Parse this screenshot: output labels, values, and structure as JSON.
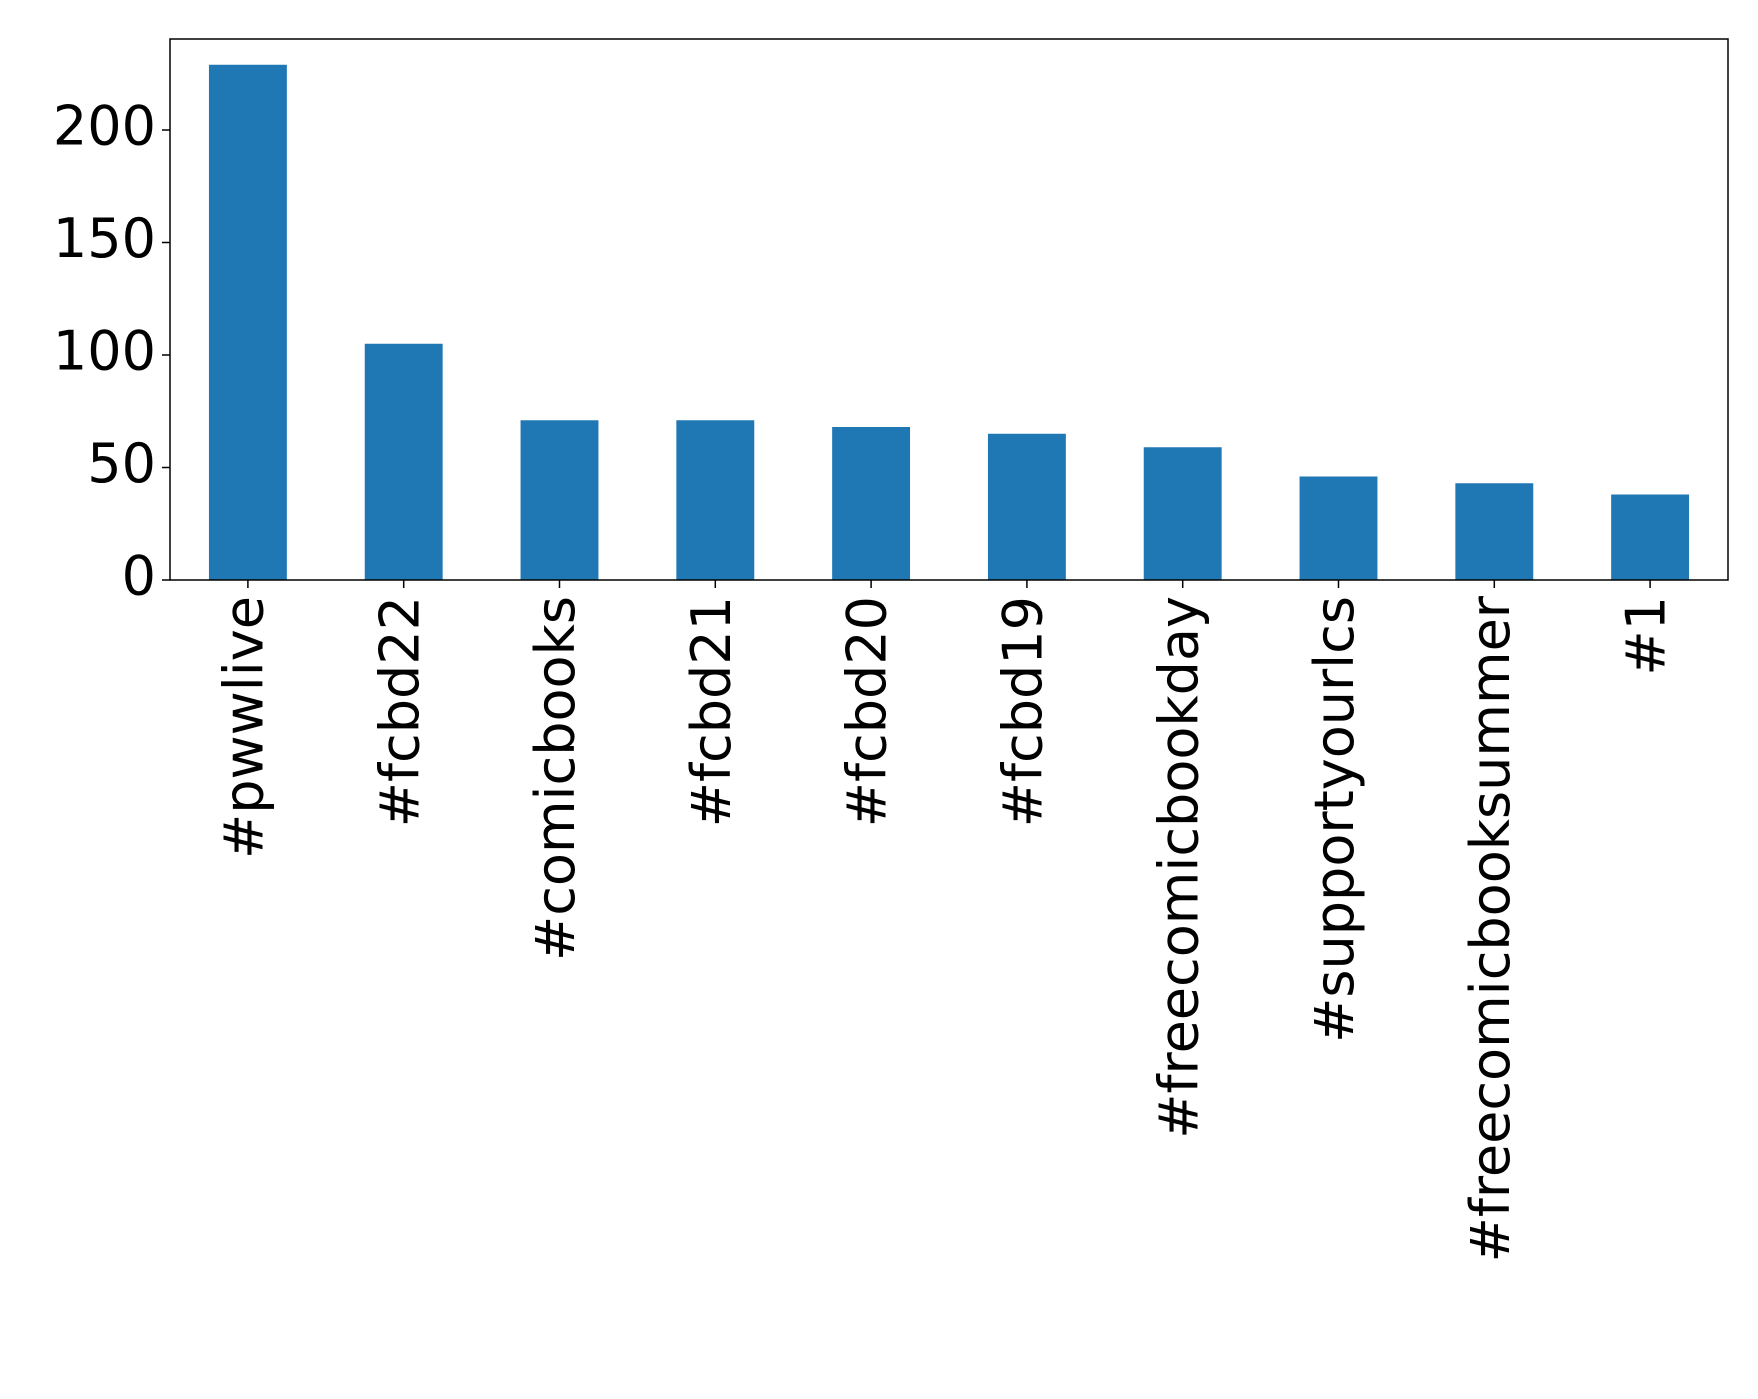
{
  "chart_data": {
    "type": "bar",
    "categories": [
      "#pwwlive",
      "#fcbd22",
      "#comicbooks",
      "#fcbd21",
      "#fcbd20",
      "#fcbd19",
      "#freecomicbookday",
      "#supportyourlcs",
      "#freecomicbooksummer",
      "#1"
    ],
    "values": [
      229,
      105,
      71,
      71,
      68,
      65,
      59,
      46,
      43,
      38
    ],
    "color": "#1f77b4",
    "ylim": [
      0,
      240.45
    ],
    "yticks": [
      0,
      50,
      100,
      150,
      200
    ],
    "grid": false
  }
}
